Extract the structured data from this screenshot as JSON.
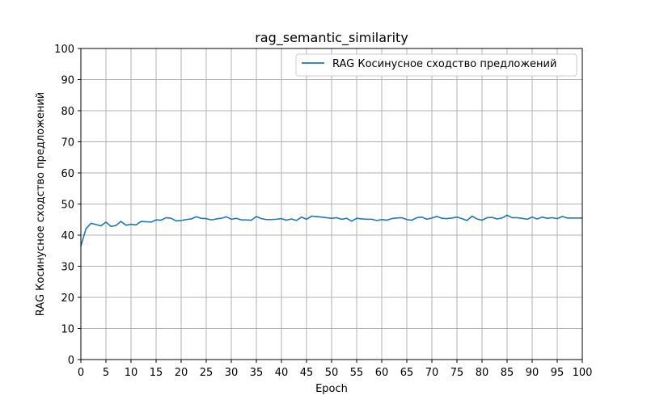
{
  "chart_data": {
    "type": "line",
    "title": "rag_semantic_similarity",
    "xlabel": "Epoch",
    "ylabel": "RAG Косинусное сходство предложений",
    "xlim": [
      0,
      100
    ],
    "ylim": [
      0,
      100
    ],
    "xticks": [
      0,
      5,
      10,
      15,
      20,
      25,
      30,
      35,
      40,
      45,
      50,
      55,
      60,
      65,
      70,
      75,
      80,
      85,
      90,
      95,
      100
    ],
    "yticks": [
      0,
      10,
      20,
      30,
      40,
      50,
      60,
      70,
      80,
      90,
      100
    ],
    "grid": true,
    "legend_position": "top-right",
    "series": [
      {
        "name": "RAG Косинусное сходство предложений",
        "color": "#1f77b4",
        "x": [
          0,
          1,
          2,
          3,
          4,
          5,
          6,
          7,
          8,
          9,
          10,
          11,
          12,
          13,
          14,
          15,
          16,
          17,
          18,
          19,
          20,
          21,
          22,
          23,
          24,
          25,
          26,
          27,
          28,
          29,
          30,
          31,
          32,
          33,
          34,
          35,
          36,
          37,
          38,
          39,
          40,
          41,
          42,
          43,
          44,
          45,
          46,
          47,
          48,
          49,
          50,
          51,
          52,
          53,
          54,
          55,
          56,
          57,
          58,
          59,
          60,
          61,
          62,
          63,
          64,
          65,
          66,
          67,
          68,
          69,
          70,
          71,
          72,
          73,
          74,
          75,
          76,
          77,
          78,
          79,
          80,
          81,
          82,
          83,
          84,
          85,
          86,
          87,
          88,
          89,
          90,
          91,
          92,
          93,
          94,
          95,
          96,
          97,
          98,
          99,
          100
        ],
        "values": [
          36.5,
          42.0,
          43.8,
          43.4,
          43.0,
          44.2,
          42.8,
          43.1,
          44.4,
          43.2,
          43.5,
          43.3,
          44.4,
          44.3,
          44.2,
          44.9,
          44.8,
          45.6,
          45.4,
          44.6,
          44.7,
          45.0,
          45.2,
          45.9,
          45.4,
          45.3,
          44.9,
          45.2,
          45.4,
          45.9,
          45.1,
          45.4,
          44.9,
          44.9,
          44.8,
          46.0,
          45.3,
          45.0,
          45.0,
          45.1,
          45.3,
          44.8,
          45.2,
          44.7,
          45.8,
          45.1,
          46.1,
          46.0,
          45.8,
          45.6,
          45.4,
          45.6,
          45.1,
          45.4,
          44.5,
          45.4,
          45.2,
          45.1,
          45.1,
          44.7,
          45.0,
          44.8,
          45.3,
          45.5,
          45.6,
          45.0,
          44.8,
          45.6,
          45.8,
          45.1,
          45.5,
          46.0,
          45.4,
          45.3,
          45.5,
          45.8,
          45.3,
          44.7,
          46.1,
          45.2,
          44.8,
          45.6,
          45.7,
          45.2,
          45.5,
          46.4,
          45.6,
          45.6,
          45.4,
          45.1,
          45.8,
          45.2,
          45.8,
          45.4,
          45.6,
          45.3,
          46.0,
          45.5,
          45.5,
          45.5,
          45.5
        ]
      }
    ]
  }
}
